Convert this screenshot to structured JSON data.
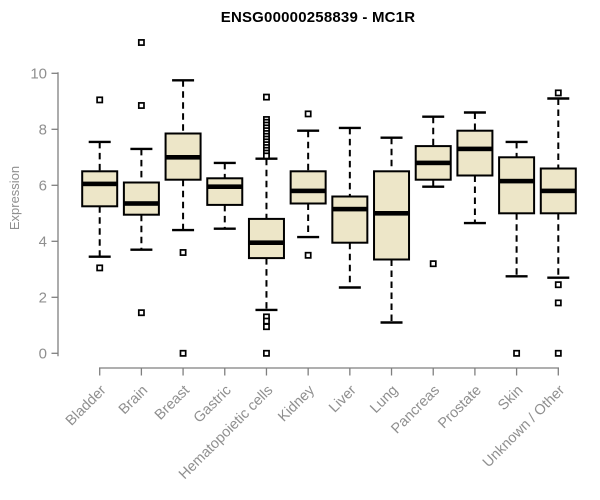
{
  "chart_data": {
    "type": "boxplot",
    "title": "ENSG00000258839 - MC1R",
    "xlabel": "",
    "ylabel": "Expression",
    "ylim": [
      0,
      10
    ],
    "yticks": [
      0,
      2,
      4,
      6,
      8,
      10
    ],
    "grid": false,
    "legend": "none",
    "categories": [
      "Bladder",
      "Brain",
      "Breast",
      "Gastric",
      "Hematopoietic cells",
      "Kidney",
      "Liver",
      "Lung",
      "Pancreas",
      "Prostate",
      "Skin",
      "Unknown / Other"
    ],
    "series": [
      {
        "category": "Bladder",
        "low": 3.45,
        "q1": 5.25,
        "median": 6.05,
        "q3": 6.5,
        "high": 7.55,
        "outliers": [
          9.05,
          3.05
        ]
      },
      {
        "category": "Brain",
        "low": 3.7,
        "q1": 4.95,
        "median": 5.35,
        "q3": 6.1,
        "high": 7.3,
        "outliers": [
          11.1,
          8.85,
          1.45
        ]
      },
      {
        "category": "Breast",
        "low": 4.4,
        "q1": 6.2,
        "median": 7.0,
        "q3": 7.85,
        "high": 9.75,
        "outliers": [
          3.6,
          0
        ]
      },
      {
        "category": "Gastric",
        "low": 4.45,
        "q1": 5.3,
        "median": 5.95,
        "q3": 6.25,
        "high": 6.8,
        "outliers": []
      },
      {
        "category": "Hematopoietic cells",
        "low": 1.55,
        "q1": 3.4,
        "median": 3.95,
        "q3": 4.8,
        "high": 6.95,
        "outliers": [
          9.15,
          8.35,
          8.25,
          8.15,
          8.05,
          7.95,
          7.85,
          7.75,
          7.65,
          7.55,
          7.45,
          7.35,
          7.25,
          7.15,
          7.05,
          1.3,
          1.15,
          0.95,
          0
        ]
      },
      {
        "category": "Kidney",
        "low": 4.15,
        "q1": 5.35,
        "median": 5.8,
        "q3": 6.5,
        "high": 7.95,
        "outliers": [
          8.55,
          3.5
        ]
      },
      {
        "category": "Liver",
        "low": 2.35,
        "q1": 3.95,
        "median": 5.15,
        "q3": 5.6,
        "high": 8.05,
        "outliers": []
      },
      {
        "category": "Lung",
        "low": 1.1,
        "q1": 3.35,
        "median": 5.0,
        "q3": 6.5,
        "high": 7.7,
        "outliers": []
      },
      {
        "category": "Pancreas",
        "low": 5.95,
        "q1": 6.2,
        "median": 6.8,
        "q3": 7.4,
        "high": 8.45,
        "outliers": [
          3.2
        ]
      },
      {
        "category": "Prostate",
        "low": 4.65,
        "q1": 6.35,
        "median": 7.3,
        "q3": 7.95,
        "high": 8.6,
        "outliers": []
      },
      {
        "category": "Skin",
        "low": 2.75,
        "q1": 5.0,
        "median": 6.15,
        "q3": 7.0,
        "high": 7.55,
        "outliers": [
          0
        ]
      },
      {
        "category": "Unknown / Other",
        "low": 2.7,
        "q1": 5.0,
        "median": 5.8,
        "q3": 6.6,
        "high": 9.1,
        "outliers": [
          9.3,
          2.45,
          1.8,
          0
        ]
      }
    ]
  },
  "style": {
    "box_fill": "#EDE6C8",
    "box_stroke": "#000000",
    "median_color": "#000000",
    "whisker_color": "#000000",
    "outlier_fill": "#FFFFFF",
    "axis_color": "#7F7F7F",
    "label_color": "#8F8F8F",
    "title_color": "#000000",
    "background": "#FFFFFF"
  }
}
